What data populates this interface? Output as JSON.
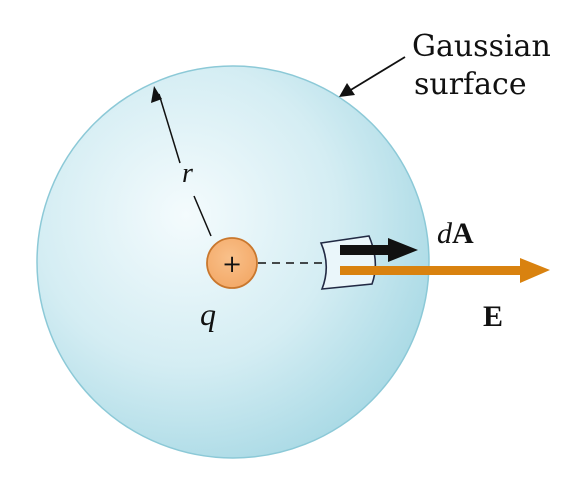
{
  "annotation": {
    "line1": "Gaussian",
    "line2": "surface"
  },
  "labels": {
    "radius": "r",
    "charge": "q",
    "charge_sign": "+",
    "area_d": "d",
    "area_A": "A",
    "field": "E"
  },
  "colors": {
    "sphere_center": "#f4fbfd",
    "sphere_mid": "#d4edf3",
    "sphere_edge": "#a6d8e4",
    "sphere_outline": "#8cc9d7",
    "charge_fill": "#f3a866",
    "charge_outline": "#c9772d",
    "field_arrow": "#d9820f",
    "area_arrow": "#111111",
    "patch_fill": "#eaf6fa",
    "patch_outline": "#222a44"
  }
}
